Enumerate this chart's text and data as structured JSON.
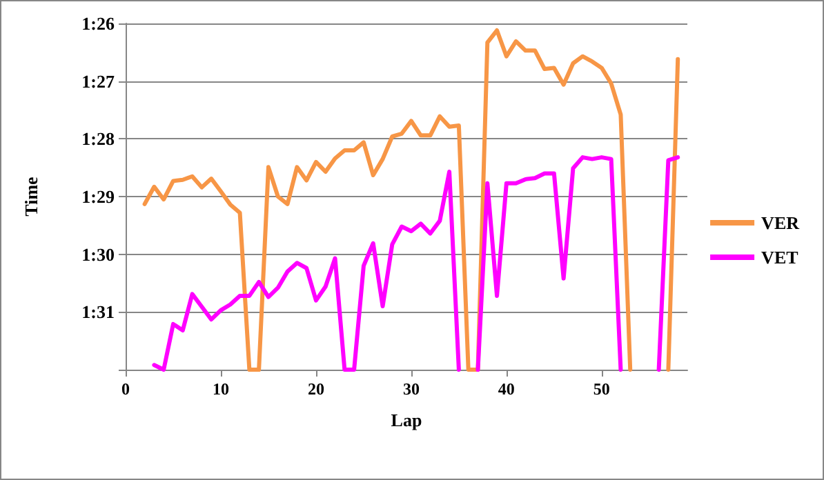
{
  "chart_data": {
    "type": "line",
    "xlabel": "Lap",
    "ylabel": "Time",
    "x": [
      2,
      3,
      4,
      5,
      6,
      7,
      8,
      9,
      10,
      11,
      12,
      13,
      14,
      15,
      16,
      17,
      18,
      19,
      20,
      21,
      22,
      23,
      24,
      25,
      26,
      27,
      28,
      29,
      30,
      31,
      32,
      33,
      34,
      35,
      36,
      37,
      38,
      39,
      40,
      41,
      42,
      43,
      44,
      45,
      46,
      47,
      48,
      49,
      50,
      51,
      52,
      53,
      54,
      55,
      56,
      57,
      58
    ],
    "series": [
      {
        "name": "VER",
        "color": "#f79646",
        "values": [
          89.13,
          88.83,
          89.05,
          88.73,
          88.71,
          88.65,
          88.84,
          88.69,
          88.91,
          89.14,
          89.28,
          92,
          92,
          88.49,
          89.0,
          89.13,
          88.49,
          88.72,
          88.4,
          88.57,
          88.34,
          88.2,
          88.2,
          88.06,
          88.63,
          88.35,
          87.96,
          87.91,
          87.69,
          87.94,
          87.94,
          87.61,
          87.79,
          87.77,
          92,
          92,
          86.33,
          86.12,
          86.57,
          86.31,
          86.47,
          86.47,
          86.79,
          86.77,
          87.06,
          86.69,
          86.57,
          86.66,
          86.77,
          87.04,
          87.58,
          92,
          null,
          null,
          null,
          92,
          86.62
        ]
      },
      {
        "name": "VET",
        "color": "#ff00ff",
        "values": [
          null,
          91.92,
          92,
          91.21,
          91.32,
          90.69,
          90.91,
          91.13,
          90.97,
          90.87,
          90.72,
          90.72,
          90.48,
          90.74,
          90.58,
          90.3,
          90.15,
          90.24,
          90.8,
          90.56,
          90.07,
          92,
          92,
          90.2,
          89.81,
          90.9,
          89.83,
          89.52,
          89.6,
          89.47,
          89.64,
          89.42,
          88.57,
          92,
          null,
          92,
          88.77,
          90.72,
          88.77,
          88.77,
          88.7,
          88.68,
          88.6,
          88.6,
          90.42,
          88.51,
          88.32,
          88.35,
          88.32,
          88.35,
          92,
          null,
          null,
          null,
          92,
          88.37,
          88.32
        ]
      }
    ],
    "xlim": [
      0,
      59
    ],
    "xticks": [
      0,
      10,
      20,
      30,
      40,
      50
    ],
    "ylim": [
      92,
      86
    ],
    "yticks": [
      {
        "value": 86,
        "label": "1:26"
      },
      {
        "value": 87,
        "label": "1:27"
      },
      {
        "value": 88,
        "label": "1:28"
      },
      {
        "value": 89,
        "label": "1:29"
      },
      {
        "value": 90,
        "label": "1:30"
      },
      {
        "value": 91,
        "label": "1:31"
      },
      {
        "value": 92,
        "label": null
      }
    ],
    "grid": "y",
    "legend": "right",
    "marker": "none",
    "line_style": "solid"
  }
}
